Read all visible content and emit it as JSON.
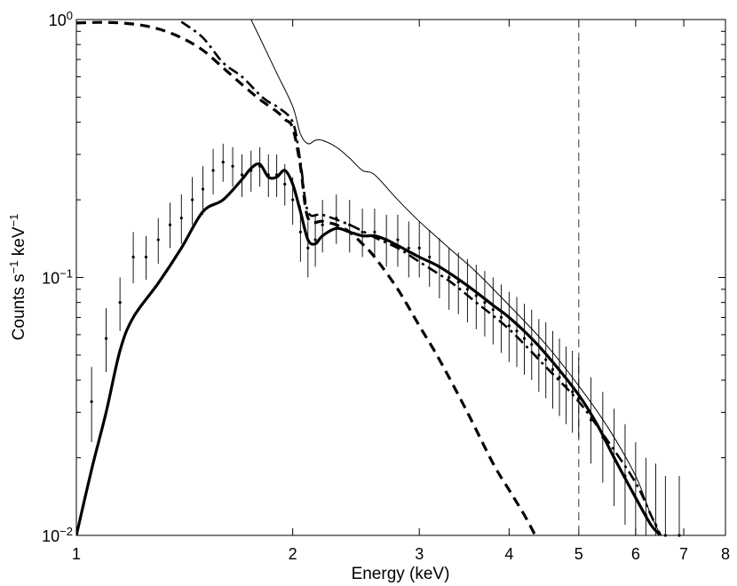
{
  "chart_data": {
    "type": "line",
    "title": "",
    "xlabel": "Energy (keV)",
    "ylabel": {
      "base": "Counts s",
      "sup1": "−1",
      "mid": " keV",
      "sup2": "−1"
    },
    "xscale": "log",
    "yscale": "log",
    "xlim": [
      1,
      8
    ],
    "ylim": [
      0.01,
      1
    ],
    "x_ticks": [
      {
        "value": 1,
        "label": "1"
      },
      {
        "value": 2,
        "label": "2"
      },
      {
        "value": 3,
        "label": "3"
      },
      {
        "value": 4,
        "label": "4"
      },
      {
        "value": 5,
        "label": "5"
      },
      {
        "value": 6,
        "label": "6"
      },
      {
        "value": 7,
        "label": "7"
      },
      {
        "value": 8,
        "label": "8"
      }
    ],
    "y_ticks": [
      {
        "value": 0.01,
        "base": "10",
        "exp": "−2"
      },
      {
        "value": 0.1,
        "base": "10",
        "exp": "−1"
      },
      {
        "value": 1,
        "base": "10",
        "exp": "0"
      }
    ],
    "vline": {
      "x": 5,
      "style": "dashed"
    },
    "series": [
      {
        "name": "total-model",
        "style": "solid-thick",
        "x": [
          1.0,
          1.05,
          1.1,
          1.15,
          1.2,
          1.3,
          1.4,
          1.5,
          1.6,
          1.7,
          1.75,
          1.8,
          1.85,
          1.9,
          1.95,
          2.0,
          2.05,
          2.1,
          2.15,
          2.2,
          2.3,
          2.4,
          2.5,
          2.6,
          2.7,
          2.8,
          3.0,
          3.2,
          3.5,
          3.8,
          4.0,
          4.3,
          4.6,
          5.0,
          5.3,
          5.6,
          6.0,
          6.3,
          6.5
        ],
        "y": [
          0.01,
          0.018,
          0.03,
          0.052,
          0.07,
          0.095,
          0.13,
          0.18,
          0.2,
          0.24,
          0.265,
          0.275,
          0.245,
          0.245,
          0.26,
          0.23,
          0.18,
          0.14,
          0.135,
          0.145,
          0.155,
          0.15,
          0.145,
          0.145,
          0.14,
          0.133,
          0.12,
          0.11,
          0.093,
          0.078,
          0.07,
          0.058,
          0.047,
          0.035,
          0.027,
          0.02,
          0.014,
          0.011,
          0.01
        ]
      },
      {
        "name": "dashed-component",
        "style": "dashed-thick",
        "x": [
          1.0,
          1.1,
          1.2,
          1.3,
          1.4,
          1.5,
          1.6,
          1.7,
          1.8,
          1.9,
          1.95,
          2.0,
          2.05,
          2.1,
          2.2,
          2.3,
          2.4,
          2.5,
          2.6,
          2.8,
          3.0,
          3.2,
          3.5,
          3.8,
          4.0,
          4.2,
          4.35
        ],
        "y": [
          0.97,
          0.975,
          0.96,
          0.92,
          0.85,
          0.76,
          0.65,
          0.56,
          0.49,
          0.44,
          0.41,
          0.38,
          0.27,
          0.17,
          0.165,
          0.16,
          0.15,
          0.135,
          0.12,
          0.09,
          0.065,
          0.048,
          0.03,
          0.019,
          0.015,
          0.012,
          0.01
        ]
      },
      {
        "name": "dash-dot-component",
        "style": "dashdot-thick",
        "x": [
          1.4,
          1.5,
          1.6,
          1.7,
          1.8,
          1.85,
          1.9,
          2.0,
          2.05,
          2.1,
          2.2,
          2.4,
          2.6,
          2.8,
          3.0,
          3.3,
          3.6,
          4.0,
          4.5,
          5.0,
          5.5,
          6.0,
          6.3,
          6.5
        ],
        "y": [
          0.98,
          0.85,
          0.68,
          0.6,
          0.51,
          0.48,
          0.46,
          0.4,
          0.28,
          0.18,
          0.175,
          0.16,
          0.143,
          0.13,
          0.115,
          0.097,
          0.08,
          0.063,
          0.045,
          0.033,
          0.023,
          0.016,
          0.012,
          0.01
        ]
      },
      {
        "name": "thin-solid-model",
        "style": "solid-thin",
        "x": [
          1.75,
          1.8,
          1.9,
          2.0,
          2.05,
          2.1,
          2.15,
          2.2,
          2.3,
          2.4,
          2.5,
          2.6,
          2.8,
          3.0,
          3.3,
          3.6,
          4.0,
          4.5,
          5.0,
          5.5,
          6.0,
          6.3,
          6.5
        ],
        "y": [
          1.0,
          0.85,
          0.62,
          0.46,
          0.36,
          0.33,
          0.34,
          0.34,
          0.32,
          0.29,
          0.26,
          0.25,
          0.2,
          0.165,
          0.13,
          0.105,
          0.078,
          0.055,
          0.038,
          0.026,
          0.017,
          0.012,
          0.01
        ]
      }
    ],
    "data_points": {
      "name": "observed-spectrum",
      "x": [
        1.05,
        1.1,
        1.15,
        1.2,
        1.25,
        1.3,
        1.35,
        1.4,
        1.45,
        1.5,
        1.55,
        1.6,
        1.65,
        1.7,
        1.75,
        1.8,
        1.85,
        1.9,
        1.95,
        2.0,
        2.05,
        2.1,
        2.15,
        2.2,
        2.3,
        2.4,
        2.5,
        2.6,
        2.7,
        2.8,
        2.9,
        3.0,
        3.1,
        3.2,
        3.3,
        3.4,
        3.5,
        3.6,
        3.7,
        3.8,
        3.9,
        4.0,
        4.1,
        4.2,
        4.3,
        4.4,
        4.5,
        4.6,
        4.7,
        4.8,
        4.9,
        5.0,
        5.2,
        5.4,
        5.6,
        5.8,
        6.0,
        6.2,
        6.4,
        6.6,
        6.9
      ],
      "y": [
        0.033,
        0.058,
        0.08,
        0.12,
        0.12,
        0.14,
        0.16,
        0.17,
        0.2,
        0.22,
        0.26,
        0.28,
        0.27,
        0.25,
        0.26,
        0.27,
        0.25,
        0.25,
        0.23,
        0.2,
        0.15,
        0.13,
        0.14,
        0.16,
        0.17,
        0.16,
        0.15,
        0.15,
        0.14,
        0.14,
        0.13,
        0.13,
        0.12,
        0.11,
        0.1,
        0.096,
        0.09,
        0.085,
        0.08,
        0.075,
        0.07,
        0.065,
        0.062,
        0.058,
        0.055,
        0.05,
        0.048,
        0.044,
        0.041,
        0.038,
        0.036,
        0.034,
        0.028,
        0.024,
        0.02,
        0.017,
        0.014,
        0.012,
        0.011,
        0.01,
        0.01
      ],
      "err_up": [
        0.012,
        0.018,
        0.02,
        0.03,
        0.025,
        0.03,
        0.035,
        0.04,
        0.045,
        0.05,
        0.055,
        0.05,
        0.05,
        0.05,
        0.05,
        0.05,
        0.05,
        0.05,
        0.045,
        0.045,
        0.04,
        0.035,
        0.035,
        0.04,
        0.04,
        0.04,
        0.035,
        0.035,
        0.035,
        0.035,
        0.035,
        0.035,
        0.033,
        0.032,
        0.03,
        0.029,
        0.028,
        0.027,
        0.026,
        0.025,
        0.024,
        0.023,
        0.022,
        0.021,
        0.02,
        0.019,
        0.019,
        0.018,
        0.017,
        0.016,
        0.016,
        0.015,
        0.013,
        0.012,
        0.011,
        0.01,
        0.009,
        0.008,
        0.008,
        0.007,
        0.007
      ],
      "err_down": [
        0.01,
        0.015,
        0.018,
        0.025,
        0.022,
        0.027,
        0.03,
        0.035,
        0.04,
        0.045,
        0.05,
        0.045,
        0.045,
        0.045,
        0.045,
        0.045,
        0.045,
        0.045,
        0.04,
        0.04,
        0.035,
        0.03,
        0.03,
        0.035,
        0.035,
        0.035,
        0.03,
        0.03,
        0.03,
        0.03,
        0.03,
        0.03,
        0.028,
        0.027,
        0.025,
        0.024,
        0.023,
        0.022,
        0.021,
        0.02,
        0.019,
        0.018,
        0.017,
        0.016,
        0.015,
        0.014,
        0.014,
        0.013,
        0.012,
        0.011,
        0.011,
        0.01,
        0.009,
        0.008,
        0.007,
        0.006,
        0.005,
        0.004,
        0.004,
        0.003,
        0.003
      ]
    }
  }
}
